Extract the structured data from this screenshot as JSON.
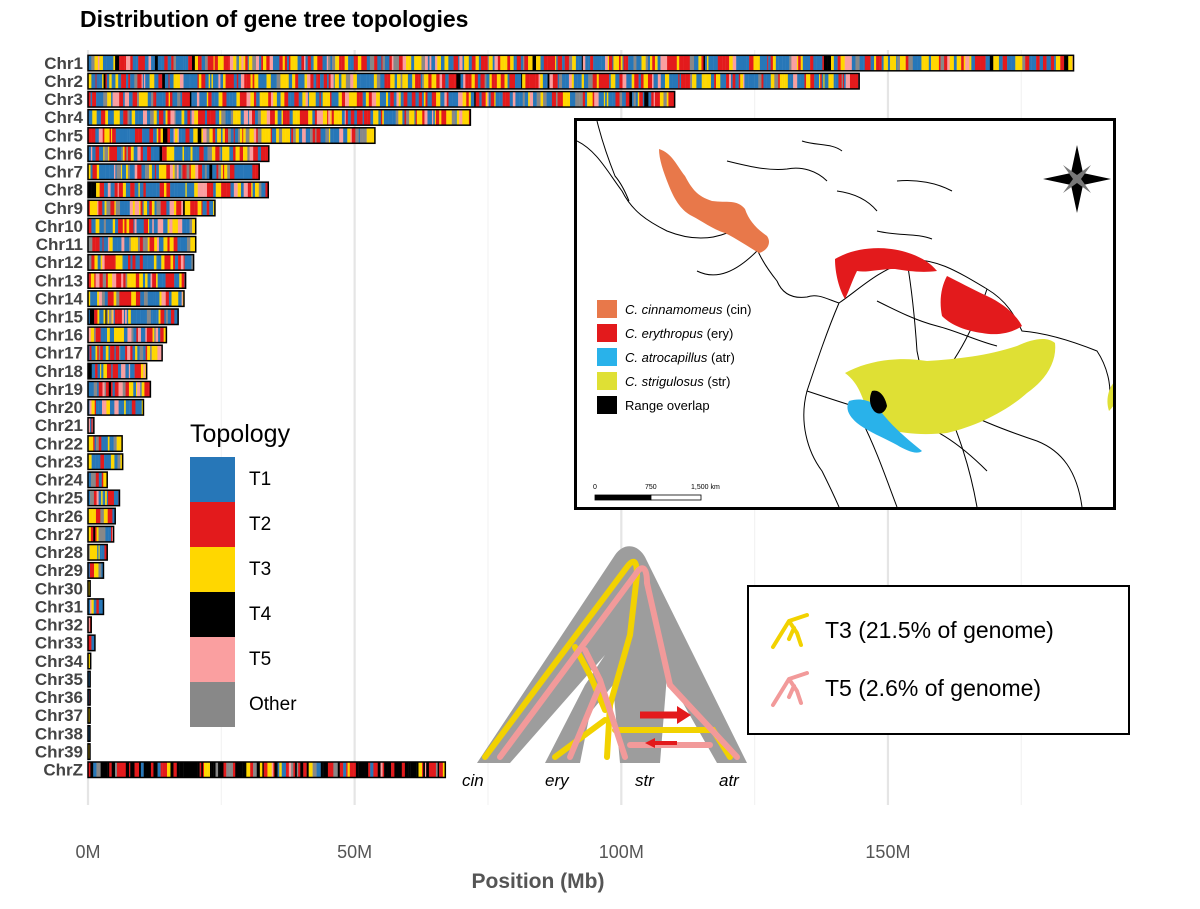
{
  "title": "Distribution of gene tree topologies",
  "chart_data": {
    "type": "bar",
    "orientation": "horizontal",
    "title": "Distribution of gene tree topologies",
    "xlabel": "Position (Mb)",
    "x_ticks": [
      "0M",
      "50M",
      "100M",
      "150M"
    ],
    "x_tick_values": [
      0,
      50,
      100,
      150
    ],
    "xlim": [
      0,
      185
    ],
    "grid": "vertical",
    "categories": [
      "Chr1",
      "Chr2",
      "Chr3",
      "Chr4",
      "Chr5",
      "Chr6",
      "Chr7",
      "Chr8",
      "Chr9",
      "Chr10",
      "Chr11",
      "Chr12",
      "Chr13",
      "Chr14",
      "Chr15",
      "Chr16",
      "Chr17",
      "Chr18",
      "Chr19",
      "Chr20",
      "Chr21",
      "Chr22",
      "Chr23",
      "Chr24",
      "Chr25",
      "Chr26",
      "Chr27",
      "Chr28",
      "Chr29",
      "Chr30",
      "Chr31",
      "Chr32",
      "Chr33",
      "Chr34",
      "Chr35",
      "Chr36",
      "Chr37",
      "Chr38",
      "Chr39",
      "ChrZ"
    ],
    "lengths_mb": [
      184.8,
      144.6,
      110.0,
      71.7,
      53.8,
      33.9,
      32.1,
      33.8,
      23.8,
      20.2,
      20.2,
      19.8,
      18.3,
      18.0,
      16.9,
      14.7,
      13.9,
      11.0,
      11.7,
      10.4,
      1.1,
      6.4,
      6.5,
      3.6,
      5.9,
      5.1,
      4.8,
      3.6,
      2.9,
      0.4,
      2.9,
      0.6,
      1.3,
      0.5,
      0.4,
      0.4,
      0.4,
      0.3,
      0.3,
      67.0
    ],
    "series_legend": {
      "title": "Topology",
      "items": [
        {
          "name": "T1",
          "color": "#2777b8"
        },
        {
          "name": "T2",
          "color": "#e31a1c"
        },
        {
          "name": "T3",
          "color": "#ffd700"
        },
        {
          "name": "T4",
          "color": "#000000"
        },
        {
          "name": "T5",
          "color": "#fa9fa0"
        },
        {
          "name": "Other",
          "color": "#888888"
        }
      ],
      "placement": "lower-left"
    }
  },
  "map_legend": {
    "items": [
      {
        "species": "C. cinnamomeus",
        "abbr": " (cin)",
        "color": "#e8784a"
      },
      {
        "species": "C. erythropus",
        "abbr": " (ery)",
        "color": "#e31a1c"
      },
      {
        "species": "C. atrocapillus",
        "abbr": " (atr)",
        "color": "#29b2ea"
      },
      {
        "species": "C. strigulosus",
        "abbr": " (str)",
        "color": "#dfe034"
      },
      {
        "species": "",
        "abbr": "Range overlap",
        "color": "#000000"
      }
    ],
    "scale_labels": [
      "0",
      "750",
      "1,500 km"
    ]
  },
  "tree": {
    "tips": [
      "cin",
      "ery",
      "str",
      "atr"
    ]
  },
  "topology_box": {
    "items": [
      {
        "label": "T3 (21.5% of genome)",
        "color": "#f2d200"
      },
      {
        "label": "T5 (2.6% of genome)",
        "color": "#f29a9a"
      }
    ]
  }
}
